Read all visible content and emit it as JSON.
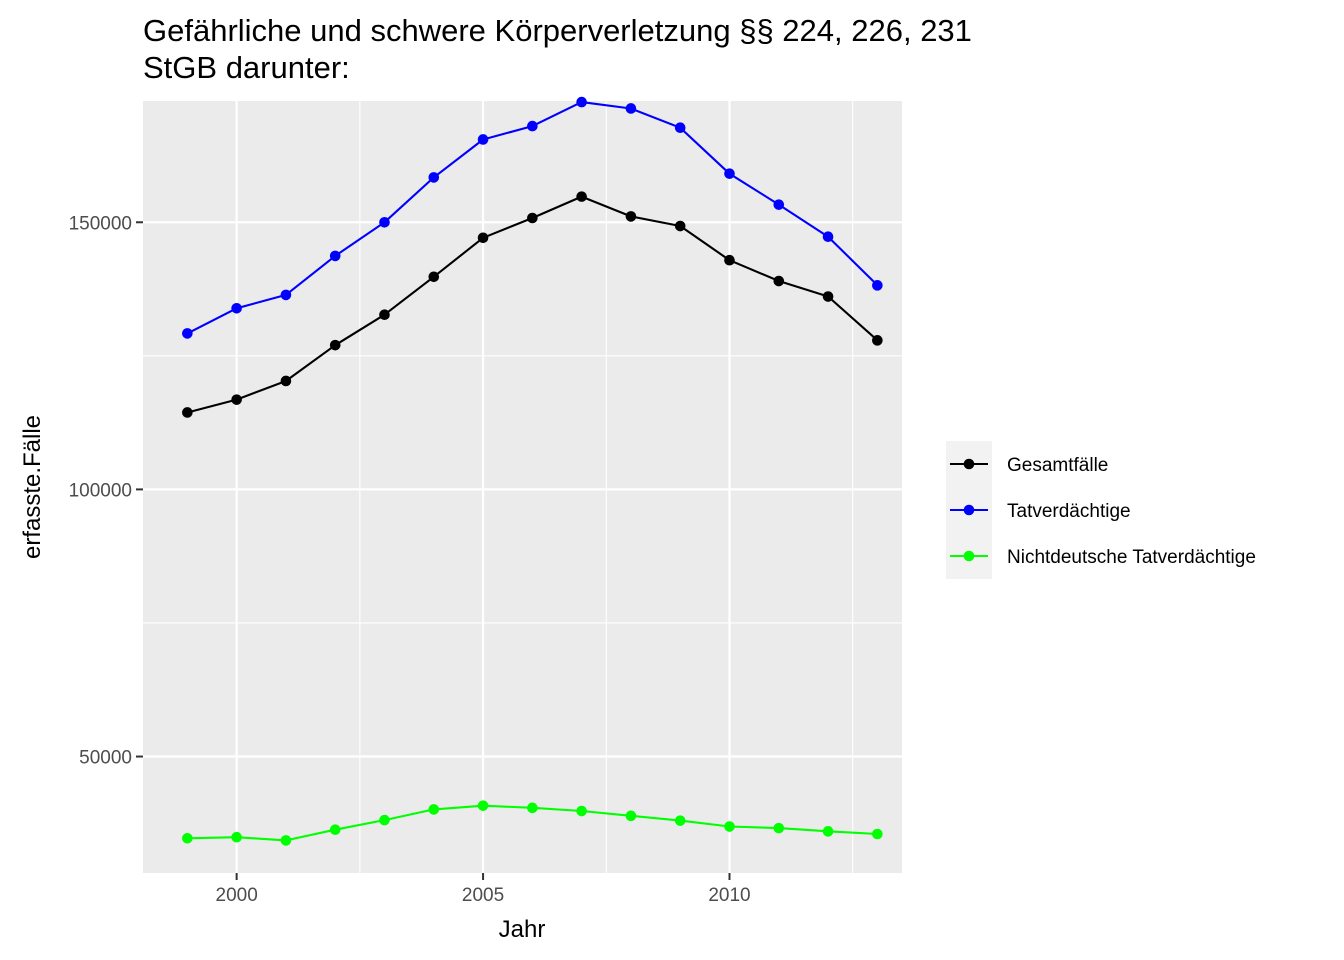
{
  "chart_data": {
    "type": "line",
    "title": "Gefährliche und schwere Körperverletzung §§ 224, 226, 231 StGB darunter:",
    "title_lines": [
      "Gefährliche und schwere Körperverletzung §§ 224, 226, 231",
      "StGB darunter:"
    ],
    "xlabel": "Jahr",
    "ylabel": "erfasste.Fälle",
    "xlim": [
      1998.1,
      2013.5
    ],
    "ylim": [
      28200,
      172700
    ],
    "x_ticks": [
      2000,
      2005,
      2010
    ],
    "x_tick_labels": [
      "2000",
      "2005",
      "2010"
    ],
    "y_ticks": [
      50000,
      100000,
      150000
    ],
    "y_tick_labels": [
      "50000",
      "100000",
      "150000"
    ],
    "x_minor_gridlines": [
      2002.5,
      2007.5,
      2012.5
    ],
    "y_minor_gridlines": [
      75000,
      125000
    ],
    "grid": true,
    "legend_position": "right",
    "x": [
      1999,
      2000,
      2001,
      2002,
      2003,
      2004,
      2005,
      2006,
      2007,
      2008,
      2009,
      2010,
      2011,
      2012,
      2013
    ],
    "series": [
      {
        "name": "Gesamtfälle",
        "color": "#000000",
        "values": [
          114400,
          116800,
          120300,
          127000,
          132700,
          139800,
          147100,
          150800,
          154800,
          151100,
          149300,
          142900,
          139000,
          136100,
          127900
        ]
      },
      {
        "name": "Tatverdächtige",
        "color": "#0000ff",
        "values": [
          129200,
          133900,
          136400,
          143700,
          150000,
          158400,
          165500,
          168000,
          172500,
          171300,
          167700,
          159100,
          153300,
          147300,
          138200
        ]
      },
      {
        "name": "Nichtdeutsche Tatverdächtige",
        "color": "#00ff00",
        "values": [
          34700,
          34900,
          34300,
          36300,
          38100,
          40100,
          40800,
          40400,
          39800,
          38900,
          38000,
          36900,
          36600,
          36000,
          35500
        ]
      }
    ]
  },
  "colors": {
    "panel_background": "#ebebeb",
    "legend_key_background": "#f2f2f2",
    "gridline": "#ffffff",
    "tick_label": "#4d4d4d"
  }
}
